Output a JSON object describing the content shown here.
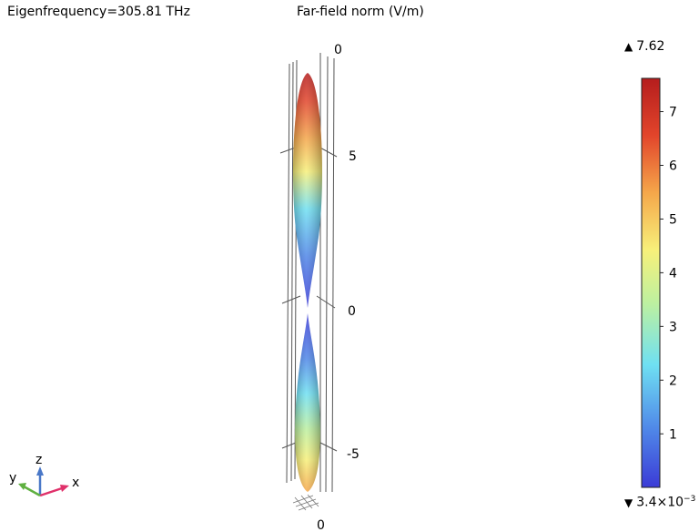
{
  "header": {
    "left_title": "Eigenfrequency=305.81 THz",
    "center_title": "Far-field norm (V/m)"
  },
  "colorbar": {
    "max_label": "7.62",
    "min_base": "3.4×10",
    "min_exp": "−3",
    "ticks": [
      "1",
      "2",
      "3",
      "4",
      "5",
      "6",
      "7"
    ],
    "range": [
      0.0034,
      7.62
    ],
    "colormap": [
      "#3b3bd6",
      "#4f86e8",
      "#6fe0f2",
      "#bdf0a0",
      "#f7f07a",
      "#f5a74a",
      "#e2452b",
      "#b51d1d"
    ]
  },
  "axes": {
    "z_ticks": [
      "0",
      "5",
      "0",
      "-5",
      "0"
    ],
    "triad": {
      "x": "x",
      "y": "y",
      "z": "z",
      "x_color": "#e0306a",
      "y_color": "#5fb040",
      "z_color": "#4a78c8"
    }
  },
  "chart_data": {
    "type": "3d-surface",
    "title": "Far-field norm (V/m)",
    "subtitle": "Eigenfrequency=305.81 THz",
    "quantity_range": [
      0.0034,
      7.62
    ],
    "z_tick_values": [
      5,
      0,
      -5
    ],
    "shape": "two-lobed far-field pattern along z axis, maximum 7.62 at upper tip"
  }
}
